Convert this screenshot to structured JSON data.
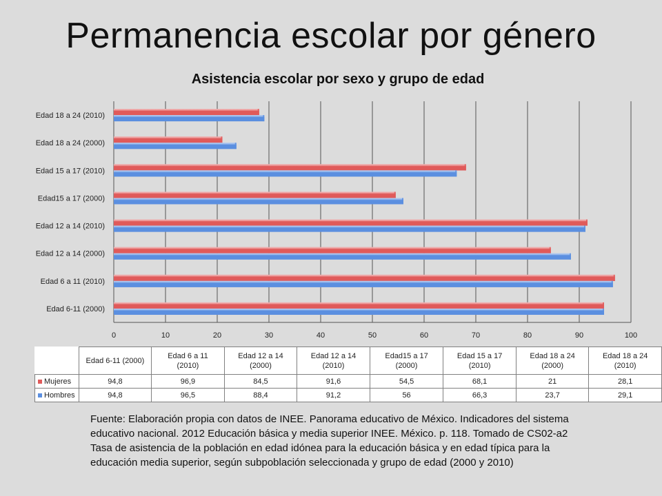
{
  "slide_title": "Permanencia escolar por género",
  "source_text": "Fuente: Elaboración propia con datos de INEE. Panorama educativo de México. Indicadores del sistema educativo nacional. 2012 Educación básica y media superior INEE. México. p. 118. Tomado de CS02-a2 Tasa de asistencia de la población en edad idónea para la educación básica y en edad típica  para la educación media superior, según subpoblación seleccionada y grupo de edad (2000 y 2010)",
  "chart_data": {
    "type": "bar",
    "orientation": "horizontal",
    "title": "Asistencia escolar por sexo y grupo de edad",
    "categories": [
      "Edad 6-11 (2000)",
      "Edad 6 a 11 (2010)",
      "Edad 12 a 14 (2000)",
      "Edad 12 a 14 (2010)",
      "Edad15 a 17 (2000)",
      "Edad 15 a 17 (2010)",
      "Edad 18 a 24 (2000)",
      "Edad 18 a 24 (2010)"
    ],
    "table_headers": [
      "Edad 6-11 (2000)",
      "Edad 6 a 11 (2010)",
      "Edad 12 a 14 (2000)",
      "Edad 12 a 14 (2010)",
      "Edad15 a 17 (2000)",
      "Edad 15 a 17 (2010)",
      "Edad 18 a 24 (2000)",
      "Edad 18 a 24 (2010)"
    ],
    "series": [
      {
        "name": "Mujeres",
        "color": "#e05a5a",
        "values": [
          94.8,
          96.9,
          84.5,
          91.6,
          54.5,
          68.1,
          21,
          28.1
        ],
        "labels": [
          "94,8",
          "96,9",
          "84,5",
          "91,6",
          "54,5",
          "68,1",
          "21",
          "28,1"
        ]
      },
      {
        "name": "Hombres",
        "color": "#5b8fe0",
        "values": [
          94.8,
          96.5,
          88.4,
          91.2,
          56,
          66.3,
          23.7,
          29.1
        ],
        "labels": [
          "94,8",
          "96,5",
          "88,4",
          "91,2",
          "56",
          "66,3",
          "23,7",
          "29,1"
        ]
      }
    ],
    "xlim": [
      0,
      100
    ],
    "xticks": [
      0,
      10,
      20,
      30,
      40,
      50,
      60,
      70,
      80,
      90,
      100
    ],
    "grid": true,
    "legend": "data table"
  }
}
